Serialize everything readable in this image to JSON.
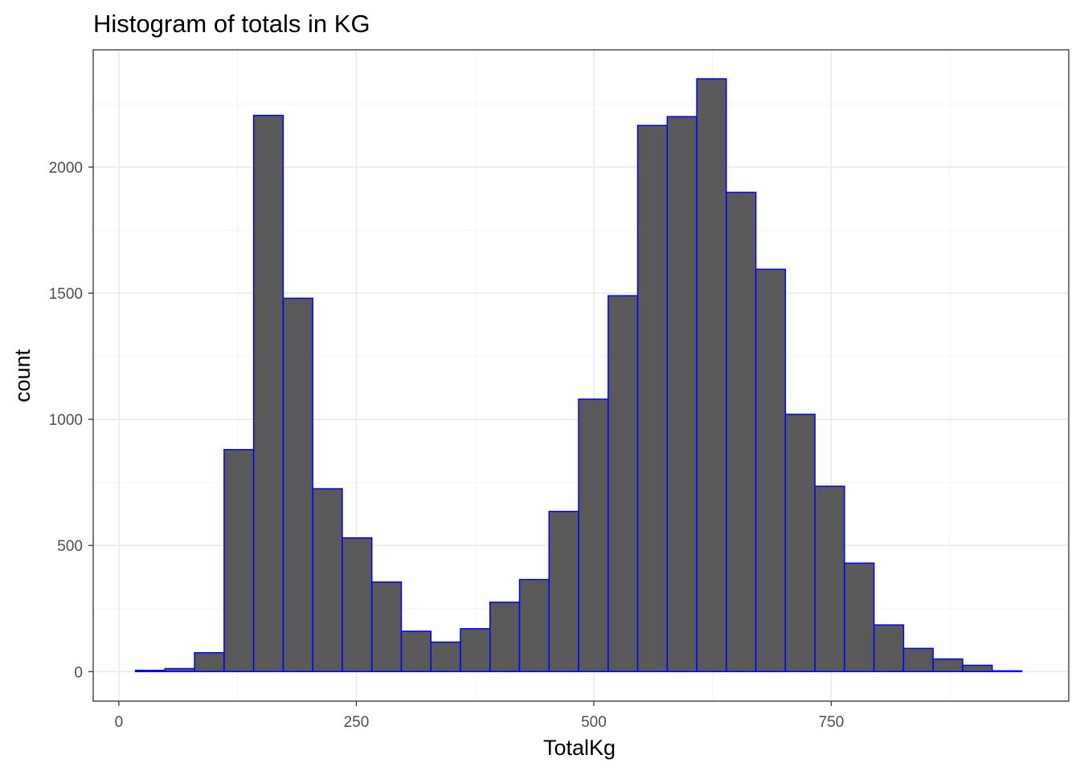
{
  "chart_data": {
    "type": "bar",
    "subtype": "histogram",
    "title": "Histogram of totals in KG",
    "xlabel": "TotalKg",
    "ylabel": "count",
    "xlim": [
      -27,
      1000
    ],
    "ylim": [
      -117,
      2465
    ],
    "x_ticks": [
      0,
      250,
      500,
      750
    ],
    "y_ticks": [
      0,
      500,
      1000,
      1500,
      2000
    ],
    "x_tick_labels": [
      "0",
      "250",
      "500",
      "750"
    ],
    "y_tick_labels": [
      "0",
      "500",
      "1000",
      "1500",
      "2000"
    ],
    "grid": true,
    "legend": "none",
    "bin_width": 31.1,
    "bins": [
      {
        "start": 17.5,
        "end": 48.6,
        "count": 5
      },
      {
        "start": 48.6,
        "end": 79.7,
        "count": 12
      },
      {
        "start": 79.7,
        "end": 110.8,
        "count": 75
      },
      {
        "start": 110.8,
        "end": 141.9,
        "count": 880
      },
      {
        "start": 141.9,
        "end": 173.0,
        "count": 2205
      },
      {
        "start": 173.0,
        "end": 204.1,
        "count": 1480
      },
      {
        "start": 204.1,
        "end": 235.2,
        "count": 725
      },
      {
        "start": 235.2,
        "end": 266.3,
        "count": 530
      },
      {
        "start": 266.3,
        "end": 297.4,
        "count": 355
      },
      {
        "start": 297.4,
        "end": 328.5,
        "count": 160
      },
      {
        "start": 328.5,
        "end": 359.6,
        "count": 117
      },
      {
        "start": 359.6,
        "end": 390.7,
        "count": 170
      },
      {
        "start": 390.7,
        "end": 421.8,
        "count": 275
      },
      {
        "start": 421.8,
        "end": 452.9,
        "count": 365
      },
      {
        "start": 452.9,
        "end": 484.0,
        "count": 635
      },
      {
        "start": 484.0,
        "end": 515.1,
        "count": 1080
      },
      {
        "start": 515.1,
        "end": 546.2,
        "count": 1490
      },
      {
        "start": 546.2,
        "end": 577.3,
        "count": 2165
      },
      {
        "start": 577.3,
        "end": 608.4,
        "count": 2200
      },
      {
        "start": 608.4,
        "end": 639.5,
        "count": 2350
      },
      {
        "start": 639.5,
        "end": 670.6,
        "count": 1900
      },
      {
        "start": 670.6,
        "end": 701.7,
        "count": 1595
      },
      {
        "start": 701.7,
        "end": 732.8,
        "count": 1020
      },
      {
        "start": 732.8,
        "end": 763.9,
        "count": 735
      },
      {
        "start": 763.9,
        "end": 795.0,
        "count": 430
      },
      {
        "start": 795.0,
        "end": 826.1,
        "count": 185
      },
      {
        "start": 826.1,
        "end": 857.2,
        "count": 92
      },
      {
        "start": 857.2,
        "end": 888.3,
        "count": 50
      },
      {
        "start": 888.3,
        "end": 919.4,
        "count": 25
      },
      {
        "start": 919.4,
        "end": 950.5,
        "count": 3
      }
    ],
    "colors": {
      "bar_fill": "#595959",
      "bar_outline": "#0000ff",
      "panel_border": "#333333",
      "grid_major": "#ebebeb",
      "grid_minor": "#f5f5f5",
      "tick_text": "#4d4d4d",
      "text": "#000000"
    }
  }
}
